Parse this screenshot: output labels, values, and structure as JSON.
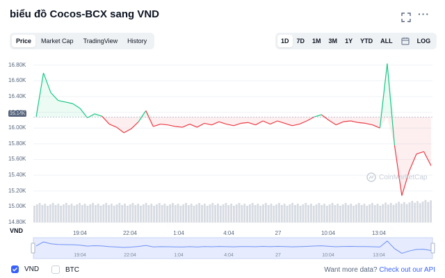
{
  "header": {
    "title": "biểu đồ Cocos-BCX sang VND",
    "more_label": "···"
  },
  "tabs": [
    {
      "label": "Price",
      "active": true
    },
    {
      "label": "Market Cap",
      "active": false
    },
    {
      "label": "TradingView",
      "active": false
    },
    {
      "label": "History",
      "active": false
    }
  ],
  "ranges": [
    {
      "label": "1D",
      "active": true
    },
    {
      "label": "7D",
      "active": false
    },
    {
      "label": "1M",
      "active": false
    },
    {
      "label": "3M",
      "active": false
    },
    {
      "label": "1Y",
      "active": false
    },
    {
      "label": "YTD",
      "active": false
    },
    {
      "label": "ALL",
      "active": false
    },
    {
      "label": "LOG",
      "active": false
    }
  ],
  "colors": {
    "up": "#16c784",
    "down": "#ea3943",
    "accent": "#3861fb",
    "volume": "#d7dbe2"
  },
  "icons": {
    "expand": "expand-icon",
    "calendar": "calendar-icon",
    "watermark": "coinmarketcap-logo"
  },
  "axis": {
    "currency_label": "VND"
  },
  "current_price_tag": "16.14K",
  "watermark_text": "CoinMarketCap",
  "chart_data": {
    "type": "line",
    "title": "biểu đồ Cocos-BCX sang VND",
    "ylabel": "VND",
    "y_ticks": [
      "14.80K",
      "15.00K",
      "15.20K",
      "15.40K",
      "15.60K",
      "15.80K",
      "16.00K",
      "16.20K",
      "16.40K",
      "16.60K",
      "16.80K"
    ],
    "ylim": [
      14800,
      16850
    ],
    "x_ticks": [
      "19:04",
      "22:04",
      "1:04",
      "4:04",
      "27",
      "10:04",
      "13:04"
    ],
    "reference_price": 16140,
    "series": [
      {
        "name": "VND",
        "x": [
          "16:04",
          "16:34",
          "17:04",
          "17:34",
          "18:04",
          "18:34",
          "19:04",
          "19:34",
          "20:04",
          "20:34",
          "21:04",
          "21:34",
          "22:04",
          "22:34",
          "23:04",
          "23:34",
          "0:04",
          "0:34",
          "1:04",
          "1:34",
          "2:04",
          "2:34",
          "3:04",
          "3:34",
          "4:04",
          "4:34",
          "5:04",
          "5:34",
          "6:04",
          "6:34",
          "7:04",
          "7:34",
          "8:04",
          "8:34",
          "9:04",
          "9:34",
          "10:04",
          "10:34",
          "11:04",
          "11:34",
          "12:04",
          "12:34",
          "13:04",
          "13:34",
          "14:04",
          "14:34",
          "15:04",
          "15:14",
          "15:19",
          "15:24",
          "15:29",
          "15:34",
          "15:44",
          "15:54",
          "16:04"
        ],
        "values": [
          16140,
          16700,
          16450,
          16350,
          16330,
          16310,
          16250,
          16130,
          16180,
          16150,
          16050,
          16010,
          15940,
          15990,
          16080,
          16220,
          16020,
          16050,
          16040,
          16020,
          16010,
          16050,
          16010,
          16060,
          16040,
          16080,
          16050,
          16030,
          16060,
          16070,
          16040,
          16090,
          16050,
          16090,
          16060,
          16030,
          16050,
          16090,
          16140,
          16170,
          16100,
          16040,
          16080,
          16090,
          16070,
          16060,
          16040,
          16000,
          16820,
          15780,
          15140,
          15450,
          15670,
          15700,
          15520
        ]
      }
    ],
    "volume_present": true,
    "navigator_present": true,
    "grid": true
  },
  "legend": [
    {
      "label": "VND",
      "checked": true
    },
    {
      "label": "BTC",
      "checked": false
    }
  ],
  "footer": {
    "prefix": "Want more data?",
    "link": "Check out our API"
  }
}
